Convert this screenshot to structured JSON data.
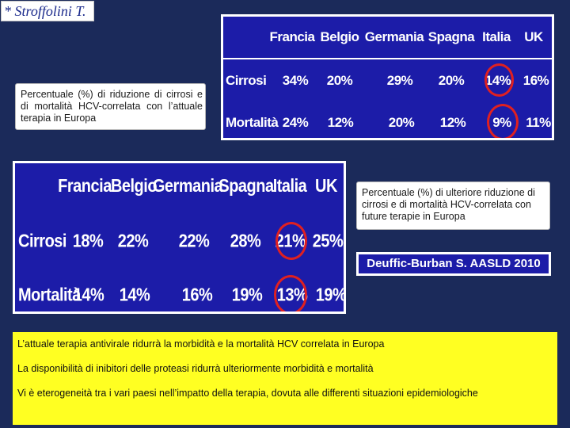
{
  "author": "* Stroffolini T.",
  "note_current": "Percentuale (%) di riduzione di cirrosi e di mortalità HCV-correlata con l’attuale terapia in Europa",
  "note_future": "Percentuale (%) di ulteriore riduzione di cirrosi e di mortalità HCV-correlata con future terapie in Europa",
  "table_current": {
    "columns": [
      "Francia",
      "Belgio",
      "Germania",
      "Spagna",
      "Italia",
      "UK"
    ],
    "rows": [
      {
        "label": "Cirrosi",
        "values": [
          "34%",
          "20%",
          "29%",
          "20%",
          "14%",
          "16%"
        ]
      },
      {
        "label": "Mortalità",
        "values": [
          "24%",
          "12%",
          "20%",
          "12%",
          "9%",
          "11%"
        ]
      }
    ],
    "highlight_column": "Italia",
    "highlight_color": "#e02020"
  },
  "table_future": {
    "columns": [
      "Francia",
      "Belgio",
      "Germania",
      "Spagna",
      "Italia",
      "UK"
    ],
    "rows": [
      {
        "label": "Cirrosi",
        "values": [
          "18%",
          "22%",
          "22%",
          "28%",
          "21%",
          "25%"
        ]
      },
      {
        "label": "Mortalità",
        "values": [
          "14%",
          "14%",
          "16%",
          "19%",
          "13%",
          "19%"
        ]
      }
    ],
    "highlight_column": "Italia",
    "highlight_color": "#e02020"
  },
  "reference": "Deuffic-Burban S. AASLD 2010",
  "summary": [
    "L’attuale terapia antivirale ridurrà la morbidità e la mortalità HCV correlata in Europa",
    "La disponibilità di inibitori delle proteasi ridurrà ulteriormente morbidità e mortalità",
    "Vi è eterogeneità tra i vari paesi nell’impatto della terapia, dovuta alle differenti situazioni epidemiologiche"
  ],
  "colors": {
    "background": "#1b2a5a",
    "table_background": "#1c1ca8",
    "summary_background": "#ffff22"
  }
}
